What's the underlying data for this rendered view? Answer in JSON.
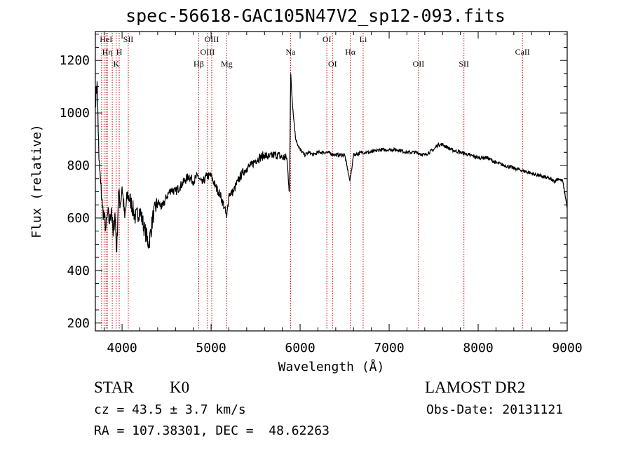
{
  "chart_data": {
    "type": "line",
    "title": "spec-56618-GAC105N47V2_sp12-093.fits",
    "xlabel": "Wavelength (Å)",
    "ylabel": "Flux (relative)",
    "xlim": [
      3700,
      9000
    ],
    "ylim": [
      170,
      1310
    ],
    "x_ticks": [
      4000,
      5000,
      6000,
      7000,
      8000,
      9000
    ],
    "y_ticks": [
      200,
      400,
      600,
      800,
      1000,
      1200
    ],
    "grid": false,
    "line_color": "#000000",
    "marker_color": "#cc0000",
    "spectrum": {
      "x": [
        3700,
        3720,
        3740,
        3760,
        3780,
        3800,
        3820,
        3840,
        3860,
        3880,
        3900,
        3920,
        3940,
        3960,
        3980,
        4000,
        4030,
        4060,
        4100,
        4150,
        4200,
        4250,
        4300,
        4350,
        4400,
        4450,
        4500,
        4550,
        4600,
        4650,
        4700,
        4750,
        4800,
        4850,
        4900,
        4950,
        5000,
        5050,
        5100,
        5150,
        5175,
        5200,
        5250,
        5300,
        5350,
        5400,
        5450,
        5500,
        5550,
        5600,
        5650,
        5700,
        5750,
        5800,
        5850,
        5880,
        5895,
        5905,
        5920,
        5950,
        6000,
        6050,
        6100,
        6150,
        6200,
        6300,
        6400,
        6500,
        6560,
        6600,
        6700,
        6800,
        6900,
        7000,
        7100,
        7200,
        7300,
        7400,
        7500,
        7550,
        7600,
        7650,
        7700,
        7800,
        7900,
        8000,
        8100,
        8200,
        8300,
        8400,
        8500,
        8600,
        8700,
        8800,
        8850,
        8900,
        8950,
        9000
      ],
      "y": [
        1040,
        1120,
        820,
        730,
        640,
        600,
        560,
        620,
        580,
        640,
        530,
        620,
        470,
        700,
        650,
        720,
        600,
        690,
        660,
        600,
        630,
        560,
        500,
        610,
        660,
        640,
        680,
        710,
        700,
        720,
        740,
        760,
        740,
        760,
        730,
        760,
        760,
        720,
        690,
        640,
        600,
        690,
        700,
        740,
        770,
        790,
        800,
        820,
        830,
        840,
        830,
        840,
        840,
        830,
        830,
        700,
        1150,
        1080,
        1010,
        900,
        860,
        840,
        850,
        840,
        850,
        850,
        840,
        840,
        740,
        840,
        850,
        850,
        860,
        860,
        860,
        850,
        850,
        840,
        860,
        880,
        880,
        870,
        860,
        850,
        840,
        830,
        830,
        810,
        800,
        790,
        780,
        770,
        760,
        750,
        740,
        750,
        740,
        640
      ]
    },
    "lines": [
      {
        "label": "HeI",
        "x": 3820,
        "row": 1
      },
      {
        "label": "SII",
        "x": 4070,
        "row": 1
      },
      {
        "label": "Hη",
        "x": 3835,
        "row": 2
      },
      {
        "label": "H",
        "x": 3968,
        "row": 2
      },
      {
        "label": "K",
        "x": 3934,
        "row": 3
      },
      {
        "label": "OIII",
        "x": 5007,
        "row": 1
      },
      {
        "label": "OIII",
        "x": 4959,
        "row": 2
      },
      {
        "label": "Hβ",
        "x": 4861,
        "row": 3
      },
      {
        "label": "Mg",
        "x": 5175,
        "row": 3
      },
      {
        "label": "Na",
        "x": 5893,
        "row": 2
      },
      {
        "label": "OI",
        "x": 6300,
        "row": 1
      },
      {
        "label": "OI",
        "x": 6364,
        "row": 3
      },
      {
        "label": "Hα",
        "x": 6563,
        "row": 2
      },
      {
        "label": "Li",
        "x": 6708,
        "row": 1
      },
      {
        "label": "OII",
        "x": 7330,
        "row": 3
      },
      {
        "label": "SII",
        "x": 7840,
        "row": 3
      },
      {
        "label": "CaII",
        "x": 8498,
        "row": 2
      }
    ],
    "extra_marker_x": [
      3770,
      3798,
      3890
    ]
  },
  "info": {
    "class": "STAR",
    "subclass": "K0",
    "survey": "LAMOST DR2",
    "cz": "cz = 43.5 ± 3.7 km/s",
    "obs_date": "Obs-Date: 20131121",
    "radec": "RA = 107.38301, DEC =  48.62263"
  }
}
